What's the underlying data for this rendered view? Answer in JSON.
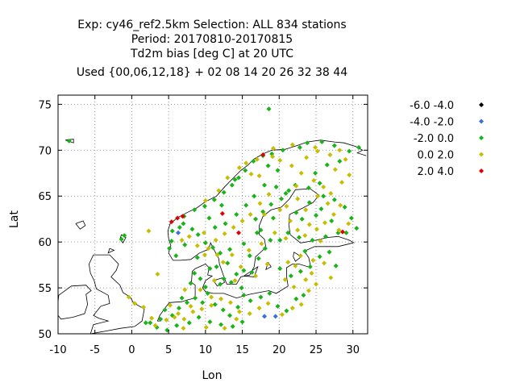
{
  "chart_data": {
    "type": "scatter",
    "title_lines": [
      "Exp: cy46_ref2.5km   Selection: ALL    834 stations",
      "Period: 20170810-20170815",
      "Td2m bias [deg C] at  20 UTC",
      "Used {00,06,12,18} + 02 08 14 20 26 32 38 44"
    ],
    "xlabel": "Lon",
    "ylabel": "Lat",
    "xlim": [
      -10,
      32
    ],
    "ylim": [
      50,
      76
    ],
    "xticks": [
      "-10",
      "-5",
      "0",
      "5",
      "10",
      "15",
      "20",
      "25",
      "30"
    ],
    "yticks": [
      "50",
      "55",
      "60",
      "65",
      "70",
      "75"
    ],
    "grid": true,
    "legend_position": "right",
    "series": [
      {
        "name": "-6.0 -4.0",
        "color": "#000000",
        "points": []
      },
      {
        "name": "-4.0 -2.0",
        "color": "#3a6fd8",
        "points": [
          [
            18,
            51.9
          ],
          [
            19.5,
            51.9
          ],
          [
            6.3,
            61.0
          ]
        ]
      },
      {
        "name": "-2.0 0.0",
        "color": "#18b418",
        "points": [
          [
            -8.5,
            71.0
          ],
          [
            -1,
            60.7
          ],
          [
            -1.4,
            60.3
          ],
          [
            5.5,
            61.2
          ],
          [
            6.5,
            61.6
          ],
          [
            7.0,
            62.0
          ],
          [
            8.2,
            61.4
          ],
          [
            9.0,
            60.8
          ],
          [
            10.0,
            59.9
          ],
          [
            11.0,
            59.4
          ],
          [
            12.0,
            58.8
          ],
          [
            13.0,
            57.7
          ],
          [
            11.5,
            57.3
          ],
          [
            12.5,
            56.0
          ],
          [
            13.5,
            55.6
          ],
          [
            14.2,
            56.5
          ],
          [
            15.2,
            56.9
          ],
          [
            16.3,
            56.7
          ],
          [
            17.2,
            58.2
          ],
          [
            18.1,
            59.3
          ],
          [
            18.8,
            60.2
          ],
          [
            17.5,
            61.3
          ],
          [
            16.8,
            62.5
          ],
          [
            17.8,
            63.3
          ],
          [
            18.9,
            64.1
          ],
          [
            20.3,
            64.7
          ],
          [
            21.3,
            65.6
          ],
          [
            22.2,
            66.2
          ],
          [
            19.8,
            67.8
          ],
          [
            18.5,
            68.3
          ],
          [
            16.5,
            68.8
          ],
          [
            17.8,
            69.4
          ],
          [
            19.0,
            69.6
          ],
          [
            20.5,
            70.0
          ],
          [
            22.8,
            70.3
          ],
          [
            23.8,
            70.8
          ],
          [
            25.8,
            70.9
          ],
          [
            27.5,
            70.5
          ],
          [
            29.5,
            69.9
          ],
          [
            30.8,
            70.3
          ],
          [
            28.2,
            68.8
          ],
          [
            26.5,
            68.4
          ],
          [
            24.9,
            67.5
          ],
          [
            25.5,
            66.4
          ],
          [
            24.0,
            65.9
          ],
          [
            26.0,
            65.0
          ],
          [
            27.5,
            64.6
          ],
          [
            28.9,
            63.8
          ],
          [
            29.8,
            62.6
          ],
          [
            30.5,
            61.5
          ],
          [
            28.0,
            61.0
          ],
          [
            26.3,
            60.6
          ],
          [
            24.5,
            60.2
          ],
          [
            22.7,
            60.5
          ],
          [
            21.2,
            61.0
          ],
          [
            20.1,
            60.2
          ],
          [
            22.3,
            63.2
          ],
          [
            23.1,
            62.5
          ],
          [
            25.0,
            62.9
          ],
          [
            27.1,
            62.3
          ],
          [
            29.1,
            61.0
          ],
          [
            24.1,
            64.3
          ],
          [
            25.7,
            63.6
          ],
          [
            4.5,
            52.6
          ],
          [
            5.5,
            52.0
          ],
          [
            6.4,
            52.8
          ],
          [
            7.5,
            53.4
          ],
          [
            8.6,
            53.9
          ],
          [
            9.6,
            53.4
          ],
          [
            10.3,
            54.4
          ],
          [
            11.3,
            53.2
          ],
          [
            12.4,
            52.6
          ],
          [
            13.3,
            52.0
          ],
          [
            14.4,
            52.9
          ],
          [
            15.2,
            54.2
          ],
          [
            16.1,
            53.6
          ],
          [
            17.5,
            54.0
          ],
          [
            18.7,
            54.4
          ],
          [
            19.8,
            53.0
          ],
          [
            21.0,
            52.5
          ],
          [
            22.3,
            53.8
          ],
          [
            23.3,
            54.2
          ],
          [
            20.1,
            57.1
          ],
          [
            21.6,
            56.3
          ],
          [
            22.9,
            56.8
          ],
          [
            24.2,
            57.3
          ],
          [
            25.5,
            58.4
          ],
          [
            26.8,
            58.9
          ],
          [
            27.7,
            57.4
          ],
          [
            23.5,
            59.0
          ],
          [
            8.5,
            56.6
          ],
          [
            9.3,
            56.0
          ],
          [
            10.6,
            57.1
          ],
          [
            8.0,
            55.5
          ],
          [
            7.1,
            62.8
          ],
          [
            8.5,
            63.5
          ],
          [
            9.9,
            63.9
          ],
          [
            11.2,
            64.6
          ],
          [
            12.5,
            65.4
          ],
          [
            13.6,
            66.2
          ],
          [
            14.5,
            67.0
          ],
          [
            15.4,
            67.8
          ],
          [
            14.0,
            66.8
          ],
          [
            12.2,
            64.0
          ],
          [
            10.5,
            62.6
          ],
          [
            11.3,
            61.6
          ],
          [
            12.7,
            62.0
          ],
          [
            14.2,
            63.0
          ],
          [
            15.5,
            64.0
          ],
          [
            16.6,
            65.0
          ],
          [
            18.0,
            66.2
          ],
          [
            19.6,
            66.0
          ],
          [
            20.9,
            65.3
          ],
          [
            19.2,
            62.6
          ],
          [
            17.0,
            61.0
          ],
          [
            15.2,
            59.8
          ],
          [
            13.3,
            59.2
          ],
          [
            16.0,
            58.5
          ],
          [
            2.5,
            51.2
          ],
          [
            3.4,
            50.7
          ],
          [
            4.8,
            50.4
          ],
          [
            6.1,
            50.9
          ],
          [
            7.8,
            51.2
          ],
          [
            9.1,
            51.8
          ],
          [
            10.6,
            51.3
          ],
          [
            12.1,
            51.0
          ],
          [
            13.7,
            50.8
          ],
          [
            15.0,
            51.3
          ],
          [
            8.9,
            58.3
          ],
          [
            7.2,
            59.7
          ],
          [
            5.4,
            60.1
          ],
          [
            5.1,
            59.3
          ],
          [
            6.0,
            58.5
          ],
          [
            18.6,
            74.5
          ],
          [
            12.0,
            55.4
          ],
          [
            14.9,
            55.0
          ],
          [
            10.0,
            55.1
          ],
          [
            6.8,
            53.9
          ],
          [
            3.9,
            51.6
          ],
          [
            1.9,
            51.2
          ]
        ]
      },
      {
        "name": "0.0 2.0",
        "color": "#c8be00",
        "points": [
          [
            2.3,
            61.2
          ],
          [
            3.5,
            56.5
          ],
          [
            -0.4,
            54.0
          ],
          [
            0.4,
            53.3
          ],
          [
            1.6,
            52.9
          ],
          [
            2.7,
            51.7
          ],
          [
            5.8,
            51.8
          ],
          [
            7.1,
            51.6
          ],
          [
            8.3,
            52.4
          ],
          [
            9.5,
            52.7
          ],
          [
            10.8,
            53.1
          ],
          [
            12.1,
            53.8
          ],
          [
            13.4,
            53.4
          ],
          [
            14.6,
            52.4
          ],
          [
            16.0,
            52.2
          ],
          [
            17.3,
            52.8
          ],
          [
            18.5,
            53.3
          ],
          [
            20.4,
            52.1
          ],
          [
            21.8,
            52.8
          ],
          [
            23.0,
            53.2
          ],
          [
            24.0,
            54.7
          ],
          [
            22.0,
            55.1
          ],
          [
            20.8,
            55.9
          ],
          [
            22.2,
            57.4
          ],
          [
            24.4,
            56.6
          ],
          [
            26.1,
            57.7
          ],
          [
            27.0,
            56.1
          ],
          [
            25.0,
            55.4
          ],
          [
            23.6,
            55.9
          ],
          [
            8.9,
            59.6
          ],
          [
            9.8,
            61.0
          ],
          [
            11.4,
            60.2
          ],
          [
            12.6,
            60.9
          ],
          [
            13.8,
            61.6
          ],
          [
            15.0,
            62.3
          ],
          [
            16.1,
            63.0
          ],
          [
            17.4,
            64.2
          ],
          [
            18.6,
            65.2
          ],
          [
            20.1,
            63.5
          ],
          [
            21.5,
            62.3
          ],
          [
            22.5,
            61.3
          ],
          [
            23.5,
            60.7
          ],
          [
            25.1,
            61.4
          ],
          [
            26.2,
            62.1
          ],
          [
            27.4,
            63.0
          ],
          [
            28.3,
            64.0
          ],
          [
            27.0,
            65.3
          ],
          [
            26.0,
            66.0
          ],
          [
            24.7,
            66.7
          ],
          [
            23.0,
            67.5
          ],
          [
            21.7,
            68.3
          ],
          [
            20.1,
            68.9
          ],
          [
            19.1,
            69.3
          ],
          [
            17.0,
            69.0
          ],
          [
            15.5,
            68.6
          ],
          [
            23.7,
            69.2
          ],
          [
            25.2,
            69.9
          ],
          [
            26.9,
            69.5
          ],
          [
            28.2,
            70.0
          ],
          [
            29.0,
            69.0
          ],
          [
            29.5,
            67.3
          ],
          [
            28.5,
            66.5
          ],
          [
            27.6,
            67.9
          ],
          [
            22.5,
            64.7
          ],
          [
            21.0,
            63.9
          ],
          [
            12.4,
            57.8
          ],
          [
            13.6,
            58.6
          ],
          [
            14.8,
            57.3
          ],
          [
            15.9,
            59.1
          ],
          [
            17.6,
            59.8
          ],
          [
            18.4,
            57.6
          ],
          [
            16.8,
            56.3
          ],
          [
            14.0,
            55.8
          ],
          [
            11.2,
            55.8
          ],
          [
            9.3,
            54.8
          ],
          [
            10.8,
            54.0
          ],
          [
            8.0,
            53.0
          ],
          [
            6.3,
            52.2
          ],
          [
            4.7,
            51.5
          ],
          [
            3.2,
            50.9
          ],
          [
            7.0,
            50.6
          ],
          [
            10.1,
            50.7
          ],
          [
            12.6,
            50.6
          ],
          [
            14.2,
            51.6
          ],
          [
            7.8,
            60.6
          ],
          [
            6.8,
            60.2
          ],
          [
            10.4,
            59.3
          ],
          [
            11.6,
            58.6
          ],
          [
            9.9,
            58.6
          ],
          [
            28.1,
            61.3
          ],
          [
            29.4,
            62.0
          ],
          [
            24.6,
            58.0
          ],
          [
            22.9,
            58.5
          ],
          [
            21.2,
            57.8
          ],
          [
            25.6,
            60.1
          ],
          [
            24.1,
            61.9
          ],
          [
            19.4,
            61.0
          ],
          [
            20.9,
            60.4
          ],
          [
            26.6,
            64.2
          ],
          [
            25.2,
            65.0
          ],
          [
            10.0,
            64.5
          ],
          [
            11.8,
            65.6
          ],
          [
            13.0,
            67.0
          ],
          [
            14.6,
            68.1
          ],
          [
            16.2,
            67.4
          ],
          [
            19.2,
            70.2
          ],
          [
            21.8,
            70.6
          ],
          [
            24.9,
            70.3
          ],
          [
            17.3,
            67.2
          ],
          [
            18.0,
            63.0
          ],
          [
            23.6,
            63.5
          ],
          [
            22.3,
            66.1
          ],
          [
            7.2,
            54.8
          ],
          [
            5.2,
            53.1
          ]
        ]
      },
      {
        "name": "2.0 4.0",
        "color": "#e00000",
        "points": [
          [
            6.2,
            62.6
          ],
          [
            6.9,
            62.8
          ],
          [
            12.3,
            63.1
          ],
          [
            14.5,
            61.0
          ],
          [
            28.6,
            61.1
          ],
          [
            17.8,
            69.5
          ],
          [
            5.4,
            62.2
          ]
        ]
      }
    ]
  }
}
